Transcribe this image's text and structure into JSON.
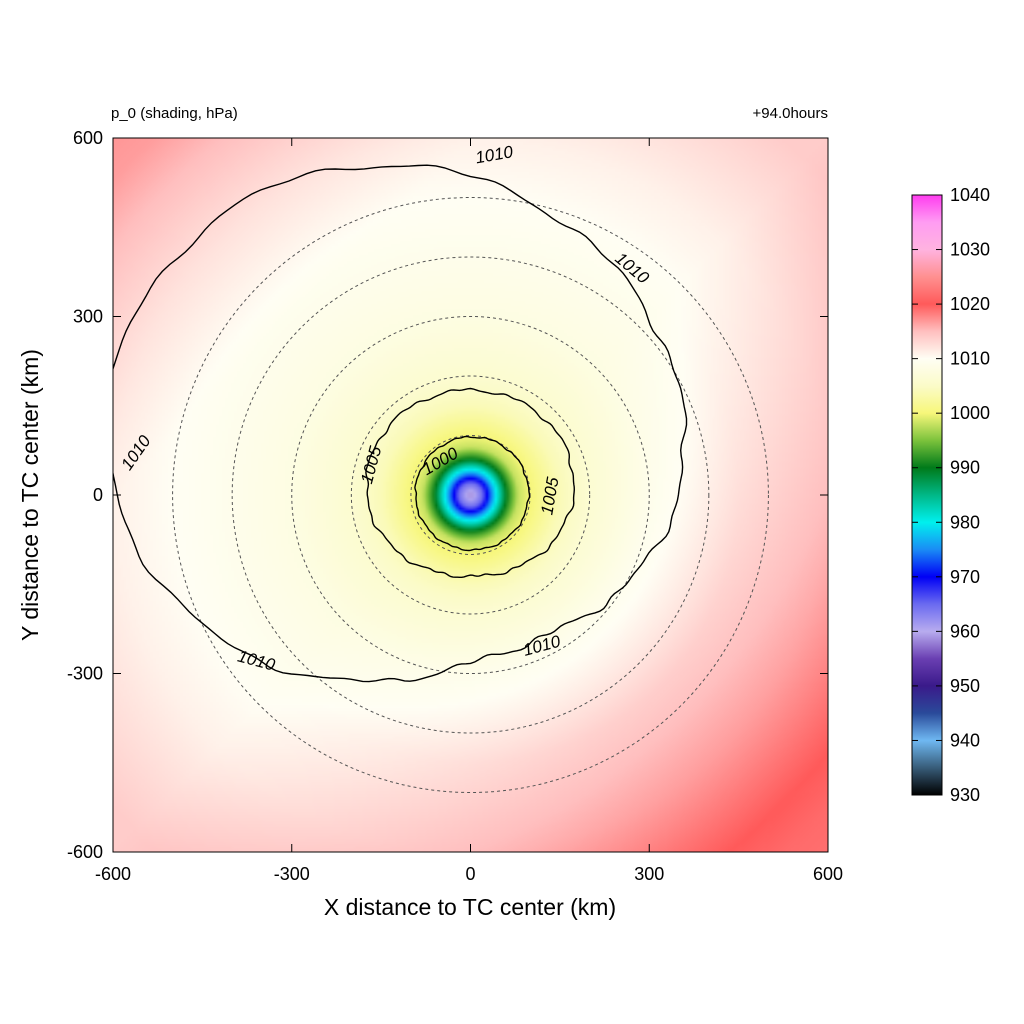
{
  "chart_data": {
    "type": "heatmap",
    "variable_label": "p_0 (shading, hPa)",
    "time_label": "+94.0hours",
    "xlabel": "X distance to TC center (km)",
    "ylabel": "Y distance to TC center (km)",
    "xlim": [
      -600,
      600
    ],
    "ylim": [
      -600,
      600
    ],
    "xticks": [
      "-600",
      "-300",
      "0",
      "300",
      "600"
    ],
    "yticks": [
      "-600",
      "-300",
      "0",
      "300",
      "600"
    ],
    "field": {
      "center": [
        0,
        0
      ],
      "min_pressure": 958,
      "ambient_pressure": 1013,
      "radial_profile_km_hpa": [
        [
          0,
          958
        ],
        [
          20,
          965
        ],
        [
          40,
          978
        ],
        [
          60,
          990
        ],
        [
          80,
          998
        ],
        [
          100,
          1000
        ],
        [
          150,
          1004
        ],
        [
          200,
          1006
        ],
        [
          300,
          1008
        ],
        [
          400,
          1009
        ],
        [
          500,
          1010
        ],
        [
          600,
          1011
        ],
        [
          800,
          1014
        ]
      ]
    },
    "colorbar": {
      "ticks": [
        "930",
        "940",
        "950",
        "960",
        "970",
        "980",
        "990",
        "1000",
        "1010",
        "1020",
        "1030",
        "1040"
      ],
      "range": [
        930,
        1040
      ],
      "stops": [
        {
          "value": 930,
          "color": "#000000"
        },
        {
          "value": 940,
          "color": "#6fb8f2"
        },
        {
          "value": 945,
          "color": "#2a4a9a"
        },
        {
          "value": 950,
          "color": "#3a1a8a"
        },
        {
          "value": 955,
          "color": "#6a3fb2"
        },
        {
          "value": 960,
          "color": "#b8acef"
        },
        {
          "value": 965,
          "color": "#6a6af0"
        },
        {
          "value": 970,
          "color": "#0000f5"
        },
        {
          "value": 975,
          "color": "#1a8cf5"
        },
        {
          "value": 980,
          "color": "#00f0ee"
        },
        {
          "value": 985,
          "color": "#00b887"
        },
        {
          "value": 990,
          "color": "#007a1a"
        },
        {
          "value": 995,
          "color": "#7cc23c"
        },
        {
          "value": 1000,
          "color": "#f7f77a"
        },
        {
          "value": 1005,
          "color": "#fbfbc8"
        },
        {
          "value": 1010,
          "color": "#fffef4"
        },
        {
          "value": 1015,
          "color": "#ffbfbf"
        },
        {
          "value": 1020,
          "color": "#ff5a5a"
        },
        {
          "value": 1025,
          "color": "#ff9090"
        },
        {
          "value": 1030,
          "color": "#ffb3e0"
        },
        {
          "value": 1035,
          "color": "#ff9cf2"
        },
        {
          "value": 1040,
          "color": "#ff3cf0"
        }
      ]
    },
    "contours": [
      {
        "level": 1000,
        "label": "1000",
        "mean_radius_km": 95
      },
      {
        "level": 1005,
        "label": "1005",
        "mean_radius_km": 165
      },
      {
        "level": 1010,
        "label": "1010",
        "mean_radius_km": 440
      }
    ],
    "reference_circles_km": [
      100,
      200,
      300,
      400,
      500
    ]
  }
}
